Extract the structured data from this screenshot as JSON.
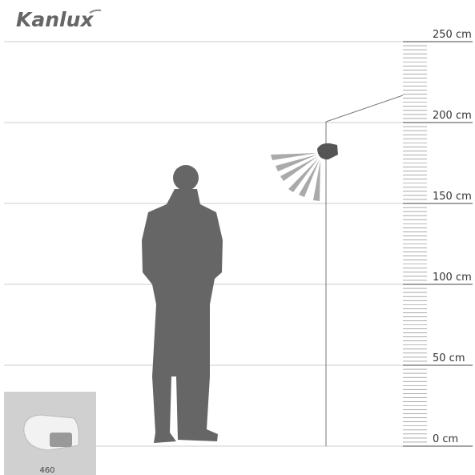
{
  "brand": "Kanlux",
  "scale_labels": [
    "250 cm",
    "200 cm",
    "150 cm",
    "100 cm",
    "50 cm",
    "0 cm"
  ],
  "product_code": "460"
}
